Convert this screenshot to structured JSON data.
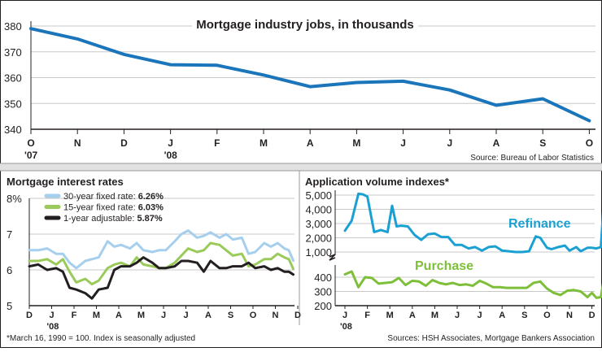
{
  "colors": {
    "top_line": "#1b75bb",
    "rate30": "#a6cfee",
    "rate15": "#9acb5a",
    "rate1": "#231f20",
    "refinance": "#1aa0d2",
    "purchase": "#7ebf3a",
    "axis": "#231f20",
    "grid": "#c8c8c8"
  },
  "chart_data": [
    {
      "id": "jobs",
      "type": "line",
      "title": "Mortgage industry jobs, in thousands",
      "source": "Source: Bureau of Labor Statistics",
      "ylim": [
        340,
        380
      ],
      "yticks": [
        "380",
        "370",
        "360",
        "350",
        "340"
      ],
      "categories": [
        "O",
        "N",
        "D",
        "J",
        "F",
        "M",
        "A",
        "M",
        "J",
        "J",
        "A",
        "S",
        "O"
      ],
      "year_labels": [
        "'07",
        "'08"
      ],
      "x": [
        0,
        1,
        2,
        3,
        4,
        5,
        6,
        7,
        8,
        9,
        10,
        11,
        12
      ],
      "values": [
        379,
        375,
        369,
        365,
        364.8,
        361,
        356.5,
        358.1,
        358.6,
        355.2,
        349.3,
        351.8,
        343.3
      ]
    },
    {
      "id": "rates",
      "type": "line",
      "title": "Mortgage interest rates",
      "ylim": [
        5,
        8
      ],
      "yticks": [
        "8%",
        "7",
        "6",
        "5"
      ],
      "categories": [
        "D",
        "J",
        "F",
        "M",
        "A",
        "M",
        "J",
        "J",
        "A",
        "S",
        "O",
        "N",
        "D"
      ],
      "year_label": "'08",
      "footnote": "*March 16, 1990 = 100. Index is seasonally adjusted",
      "series": [
        {
          "name": "30-year fixed rate:",
          "last": "6.26%",
          "x": [
            0,
            0.4,
            0.8,
            1.2,
            1.5,
            1.8,
            2.1,
            2.5,
            2.8,
            3.1,
            3.5,
            3.8,
            4.1,
            4.5,
            4.8,
            5.1,
            5.5,
            5.8,
            6.1,
            6.5,
            6.8,
            7.1,
            7.5,
            7.8,
            8.1,
            8.5,
            8.8,
            9.1,
            9.5,
            9.8,
            10.1,
            10.5,
            10.8,
            11.1,
            11.4,
            11.6,
            11.8
          ],
          "values": [
            6.55,
            6.55,
            6.6,
            6.45,
            6.45,
            6.2,
            6.05,
            6.25,
            6.3,
            6.35,
            6.8,
            6.65,
            6.7,
            6.6,
            6.75,
            6.55,
            6.5,
            6.55,
            6.55,
            6.8,
            7.0,
            7.1,
            6.9,
            6.95,
            7.05,
            6.9,
            7.0,
            6.85,
            6.9,
            6.45,
            6.5,
            6.75,
            6.65,
            6.75,
            6.6,
            6.55,
            6.26
          ]
        },
        {
          "name": "15-year fixed rate:",
          "last": "6.03%",
          "x": [
            0,
            0.4,
            0.8,
            1.2,
            1.5,
            1.8,
            2.1,
            2.5,
            2.8,
            3.1,
            3.5,
            3.8,
            4.1,
            4.5,
            4.8,
            5.1,
            5.5,
            5.8,
            6.1,
            6.5,
            6.8,
            7.1,
            7.5,
            7.8,
            8.1,
            8.5,
            8.8,
            9.1,
            9.5,
            9.8,
            10.1,
            10.5,
            10.8,
            11.1,
            11.4,
            11.6,
            11.8
          ],
          "values": [
            6.25,
            6.25,
            6.3,
            6.15,
            6.3,
            5.95,
            5.65,
            5.75,
            5.6,
            5.7,
            6.05,
            6.15,
            6.2,
            6.1,
            6.35,
            6.15,
            6.1,
            6.05,
            6.05,
            6.2,
            6.4,
            6.6,
            6.5,
            6.55,
            6.75,
            6.7,
            6.55,
            6.4,
            6.45,
            6.1,
            6.15,
            6.3,
            6.3,
            6.45,
            6.35,
            6.3,
            6.03
          ]
        },
        {
          "name": "1-year adjustable:",
          "last": "5.87%",
          "x": [
            0,
            0.4,
            0.8,
            1.2,
            1.5,
            1.8,
            2.1,
            2.5,
            2.8,
            3.1,
            3.5,
            3.8,
            4.1,
            4.5,
            4.8,
            5.1,
            5.5,
            5.8,
            6.1,
            6.5,
            6.8,
            7.1,
            7.5,
            7.8,
            8.1,
            8.5,
            8.8,
            9.1,
            9.5,
            9.8,
            10.1,
            10.5,
            10.8,
            11.1,
            11.4,
            11.6,
            11.8
          ],
          "values": [
            6.1,
            6.15,
            6.0,
            6.05,
            5.95,
            5.5,
            5.45,
            5.35,
            5.2,
            5.45,
            5.5,
            6.0,
            6.1,
            6.1,
            6.2,
            6.35,
            6.2,
            6.05,
            6.05,
            6.1,
            6.25,
            6.25,
            6.2,
            5.95,
            6.25,
            6.05,
            6.05,
            6.1,
            6.1,
            6.2,
            6.05,
            6.1,
            6.0,
            6.05,
            5.95,
            5.95,
            5.87
          ]
        }
      ]
    },
    {
      "id": "apps",
      "type": "line",
      "title": "Application volume indexes*",
      "source": "Sources: HSH Associates, Mortgage Bankers Association",
      "yticks_upper": [
        "5,000",
        "4,000",
        "3,000",
        "2,000",
        "1,000"
      ],
      "yticks_lower": [
        "400",
        "300",
        "200"
      ],
      "categories": [
        "J",
        "F",
        "M",
        "A",
        "M",
        "J",
        "J",
        "A",
        "S",
        "O",
        "N",
        "D"
      ],
      "year_label": "'08",
      "series": [
        {
          "name": "Refinance",
          "x": [
            0,
            0.3,
            0.6,
            0.8,
            1.0,
            1.3,
            1.6,
            1.9,
            2.1,
            2.3,
            2.5,
            2.8,
            3.1,
            3.4,
            3.7,
            4.0,
            4.3,
            4.6,
            4.9,
            5.2,
            5.5,
            5.8,
            6.1,
            6.4,
            6.7,
            7.0,
            7.3,
            7.6,
            7.9,
            8.2,
            8.5,
            8.7,
            9.0,
            9.2,
            9.5,
            9.8,
            10.0,
            10.3,
            10.5,
            10.8,
            11.0,
            11.2,
            11.4,
            11.5
          ],
          "values": [
            2500,
            3200,
            5100,
            5050,
            4900,
            2400,
            2550,
            2400,
            4250,
            2800,
            2850,
            2800,
            2200,
            1850,
            2250,
            2300,
            2050,
            2050,
            1500,
            1500,
            1250,
            1350,
            1100,
            1350,
            1400,
            1100,
            1050,
            1000,
            1000,
            1050,
            2100,
            2000,
            1300,
            1200,
            1350,
            1450,
            1100,
            1350,
            1050,
            1300,
            1300,
            1250,
            1350,
            3800
          ]
        },
        {
          "name": "Purchase",
          "x": [
            0,
            0.3,
            0.6,
            0.9,
            1.2,
            1.5,
            1.8,
            2.1,
            2.4,
            2.7,
            3.0,
            3.3,
            3.6,
            3.9,
            4.2,
            4.5,
            4.8,
            5.1,
            5.4,
            5.7,
            6.0,
            6.3,
            6.6,
            6.9,
            7.2,
            7.5,
            7.8,
            8.1,
            8.4,
            8.7,
            9.0,
            9.3,
            9.6,
            9.9,
            10.2,
            10.5,
            10.8,
            11.0,
            11.2,
            11.4,
            11.5
          ],
          "values": [
            420,
            440,
            330,
            400,
            395,
            355,
            360,
            365,
            395,
            345,
            375,
            370,
            340,
            380,
            360,
            350,
            360,
            345,
            350,
            340,
            375,
            355,
            330,
            330,
            325,
            325,
            325,
            325,
            360,
            370,
            320,
            290,
            275,
            305,
            310,
            300,
            260,
            290,
            255,
            260,
            355
          ]
        }
      ]
    }
  ]
}
